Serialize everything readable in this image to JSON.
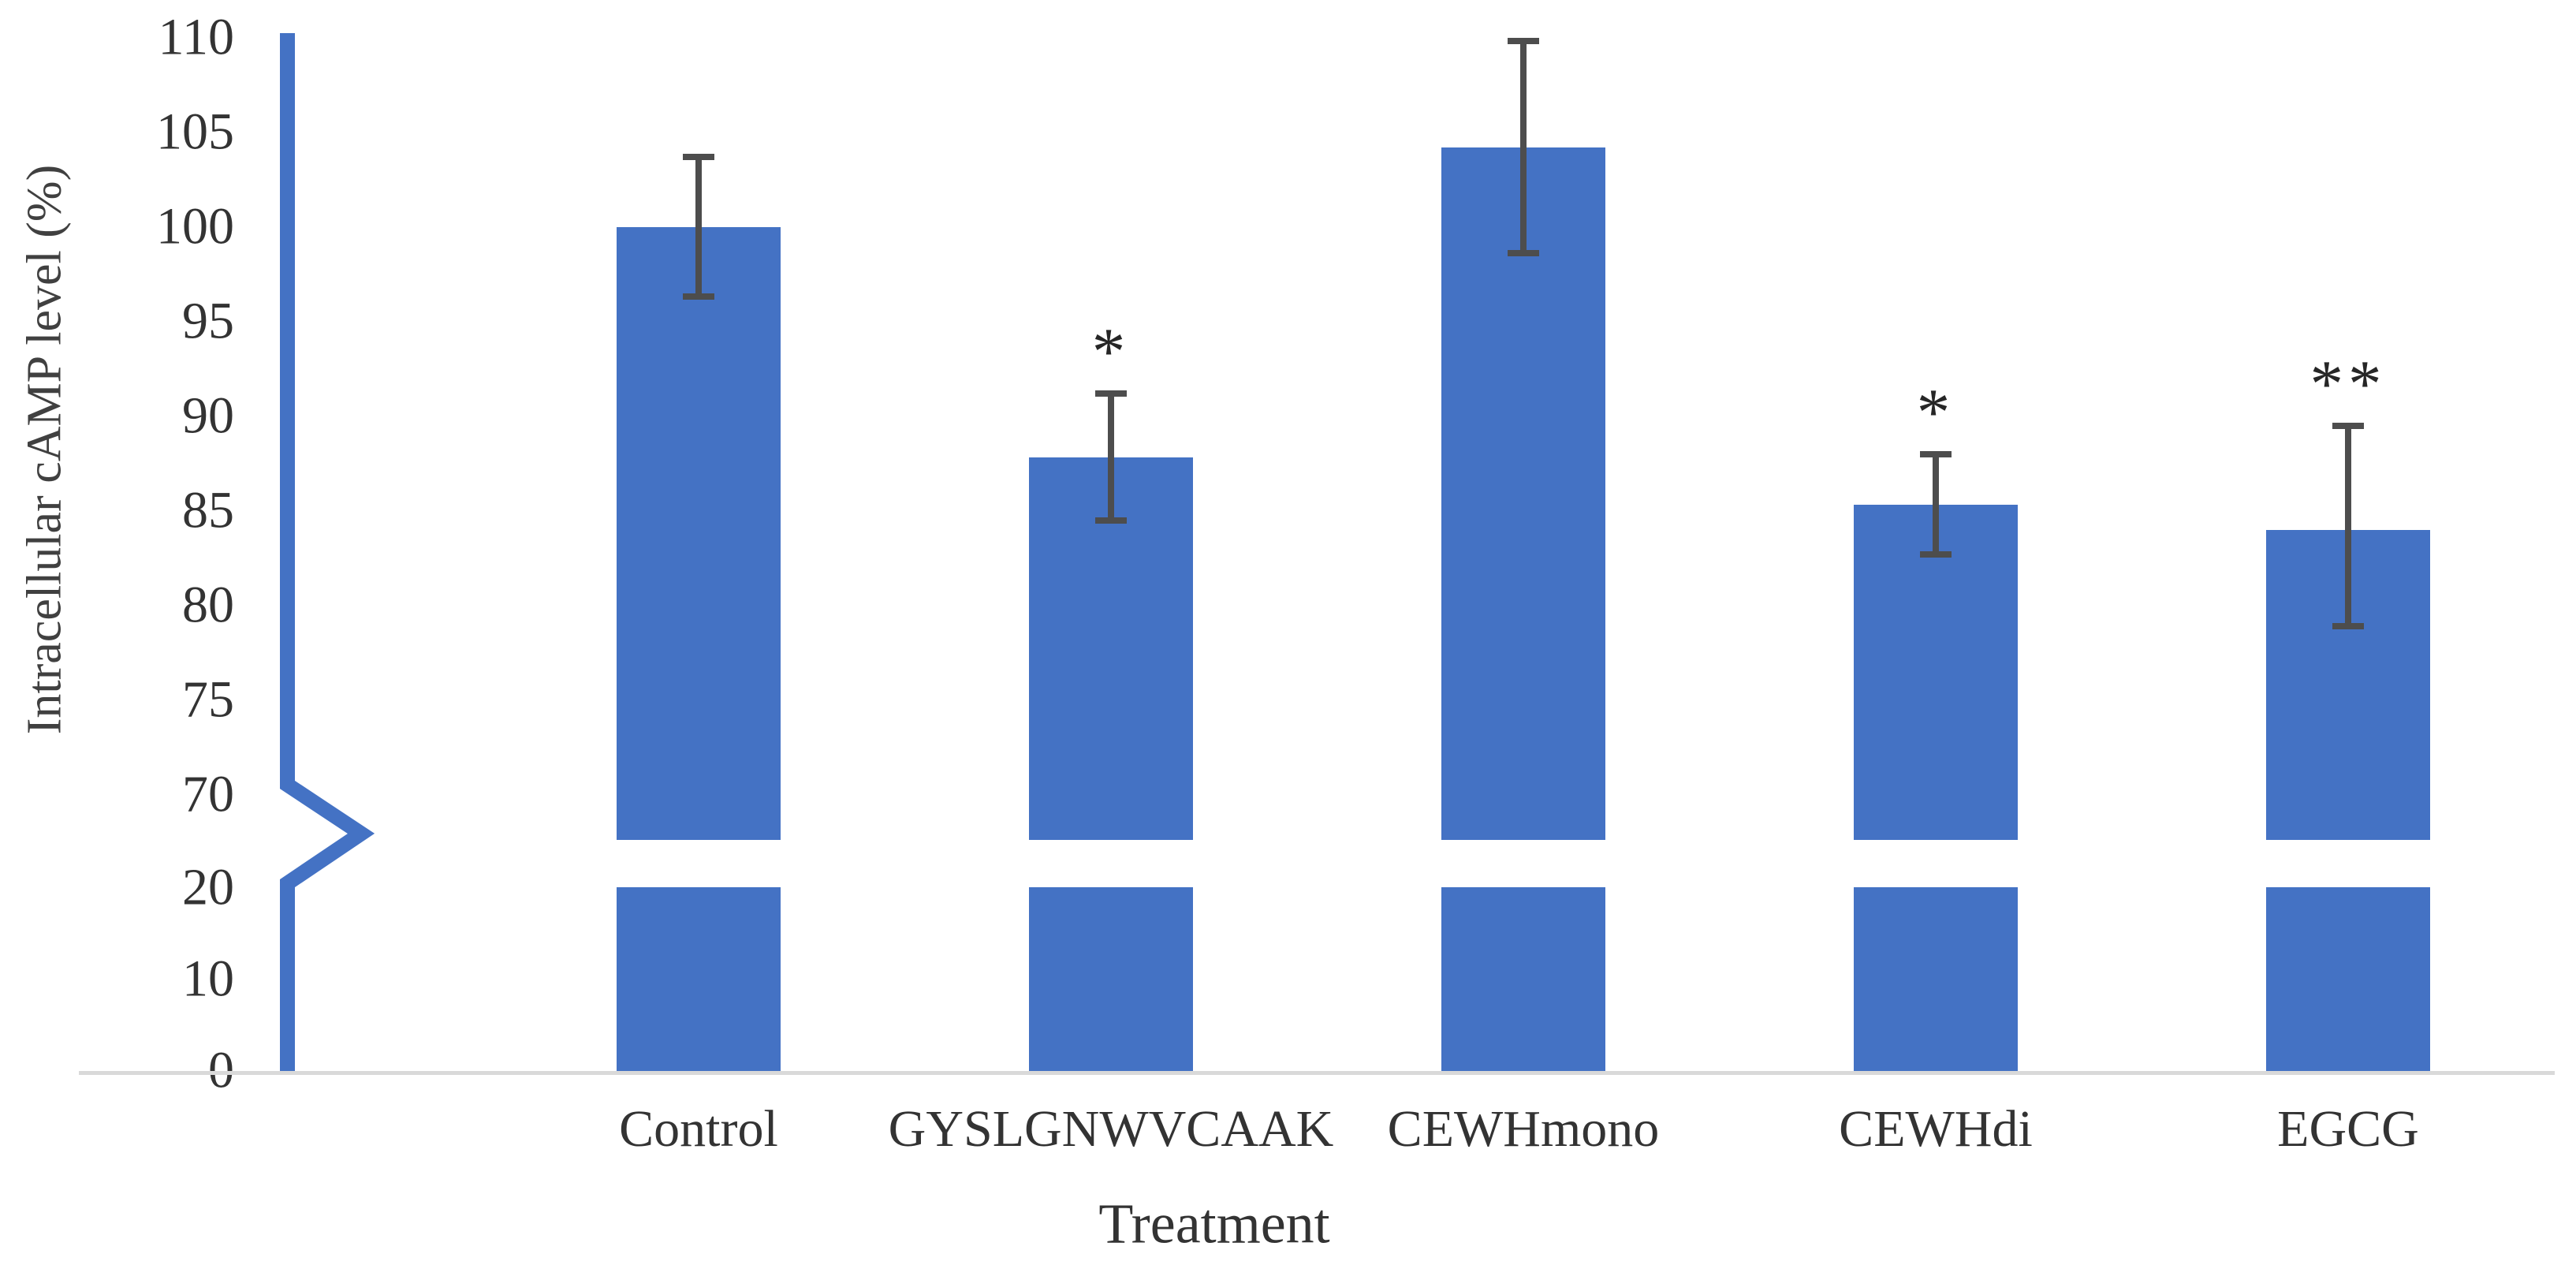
{
  "chart_data": {
    "type": "bar",
    "title": "",
    "xlabel": "Treatment",
    "ylabel": "Intracellular cAMP level (%)",
    "categories": [
      "Control",
      "GYSLGNWVCAAK",
      "CEWHmono",
      "CEWHdi",
      "EGCG"
    ],
    "values": [
      100.1,
      87.9,
      104.3,
      85.4,
      84.1
    ],
    "error_upper": [
      103.8,
      91.3,
      109.9,
      88.1,
      89.6
    ],
    "error_lower": [
      96.4,
      84.6,
      98.7,
      82.8,
      79.0
    ],
    "significance": [
      "",
      "*",
      "",
      "*",
      "**"
    ],
    "y_ticks": [
      0,
      10,
      20,
      70,
      75,
      80,
      85,
      90,
      95,
      100,
      105,
      110
    ],
    "ylim": [
      0,
      110
    ],
    "axis_break": {
      "between": [
        20,
        70
      ]
    },
    "grid": false,
    "legend": false,
    "colors": {
      "bar": "#4472C4",
      "axis_line": "#4472C4",
      "error_bar": "#4d4d4d",
      "baseline": "#d9d9d9",
      "text": "#333333"
    }
  }
}
